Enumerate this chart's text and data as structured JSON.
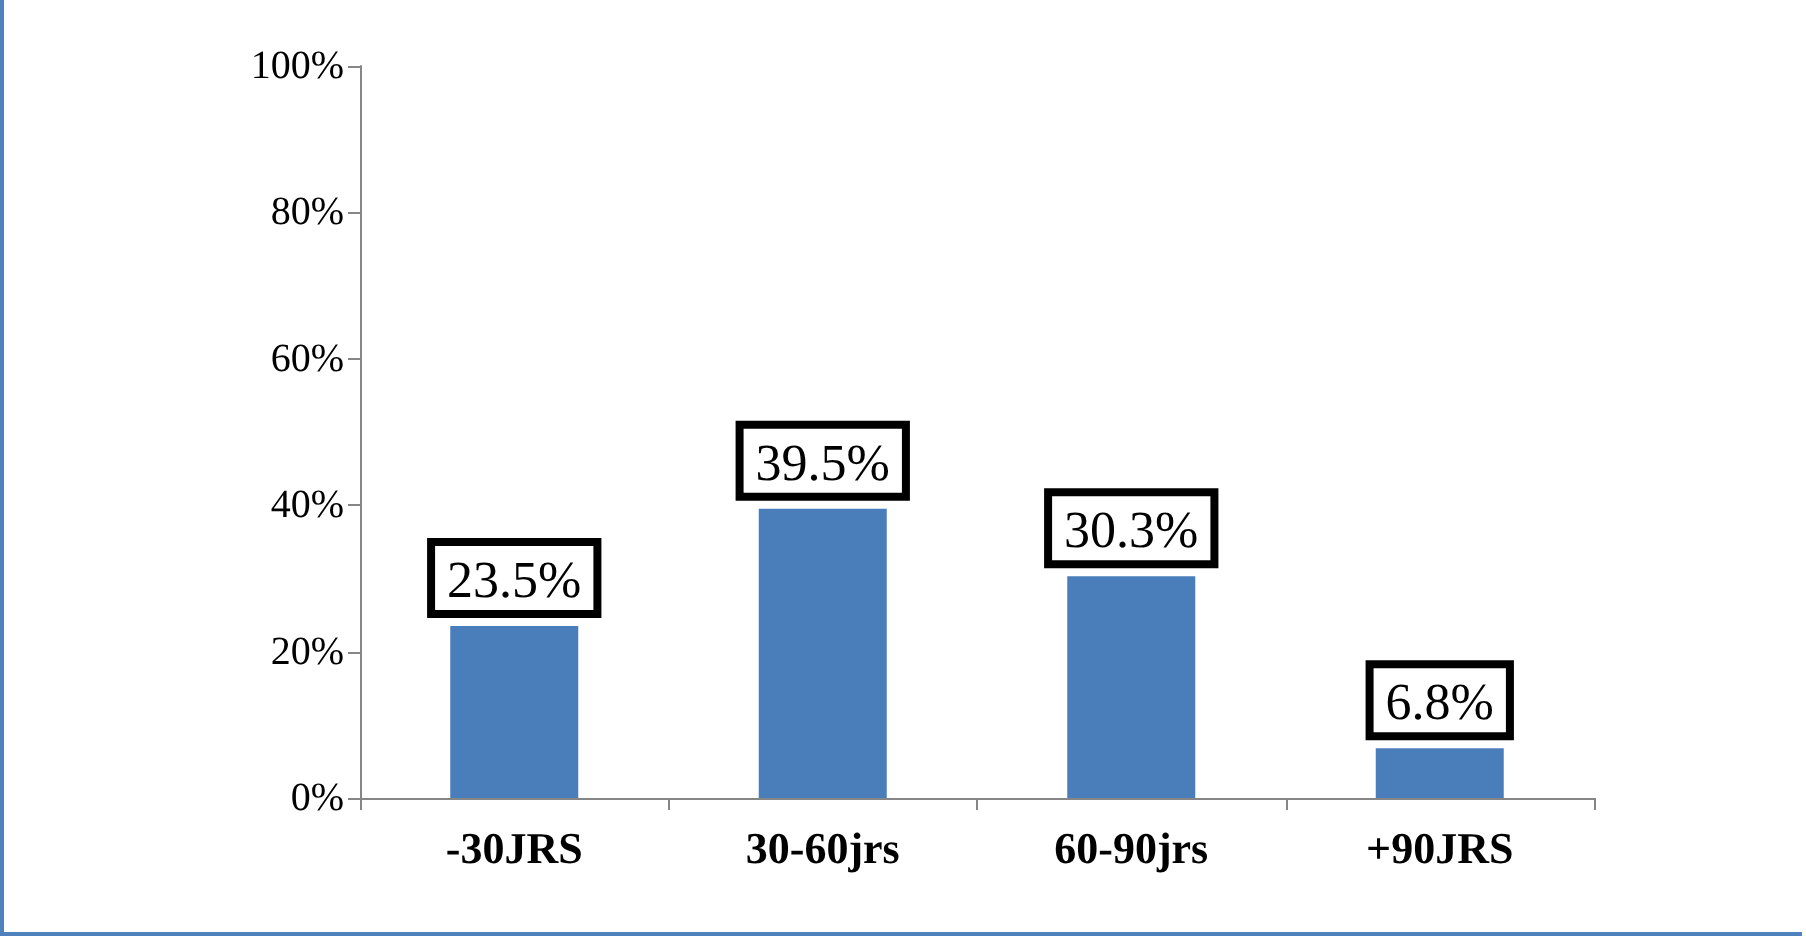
{
  "chart_data": {
    "type": "bar",
    "categories": [
      "-30JRS",
      "30-60jrs",
      "60-90jrs",
      "+90JRS"
    ],
    "values": [
      23.5,
      39.5,
      30.3,
      6.8
    ],
    "value_labels": [
      "23.5%",
      "39.5%",
      "30.3%",
      "6.8%"
    ],
    "color": "#4a7ebb",
    "ylim": [
      0,
      100
    ],
    "yticks": [
      {
        "value": 0,
        "label": "0%"
      },
      {
        "value": 20,
        "label": "20%"
      },
      {
        "value": 40,
        "label": "40%"
      },
      {
        "value": 60,
        "label": "60%"
      },
      {
        "value": 80,
        "label": "80%"
      },
      {
        "value": 100,
        "label": "100%"
      }
    ],
    "grid": false
  }
}
